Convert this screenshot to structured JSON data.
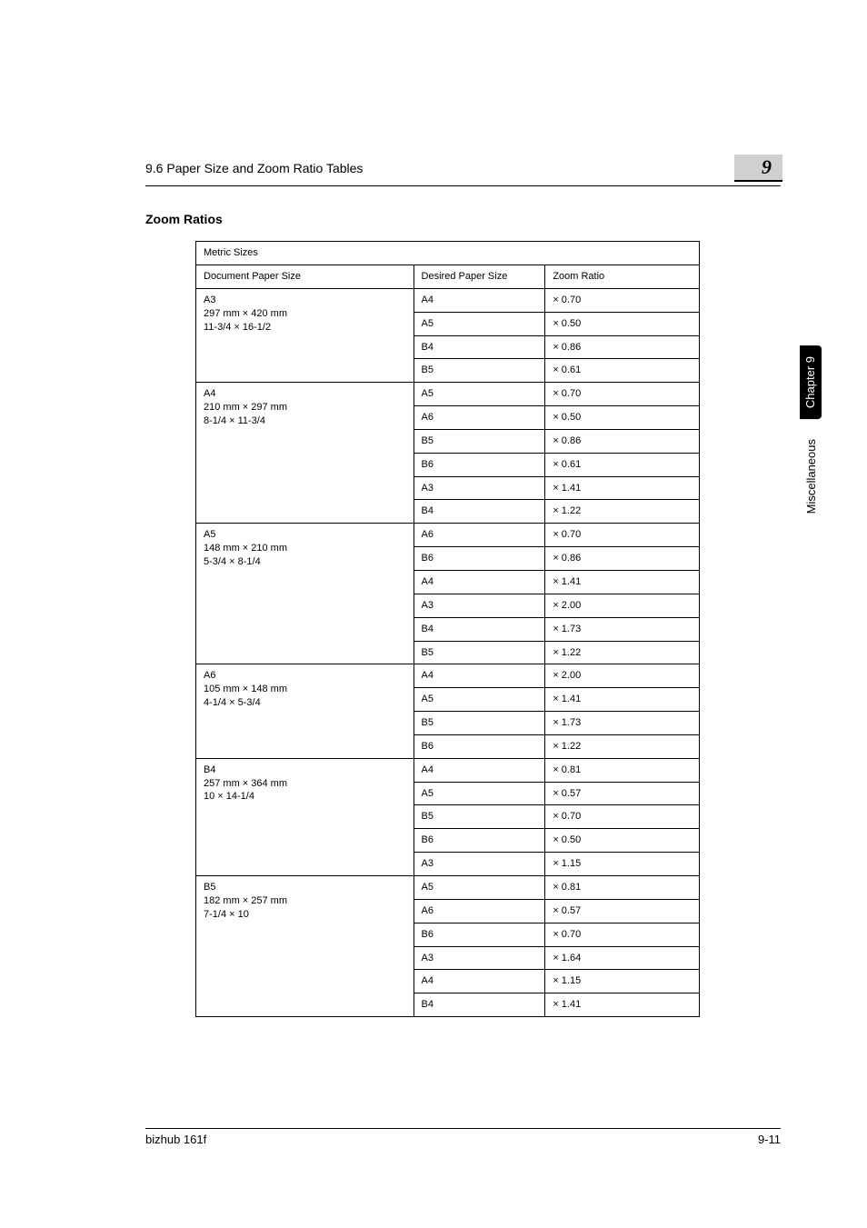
{
  "header": {
    "title": "9.6 Paper Size and Zoom Ratio Tables",
    "chapter_number": "9"
  },
  "section_title": "Zoom Ratios",
  "table": {
    "caption": "Metric Sizes",
    "columns": {
      "doc": "Document Paper Size",
      "desired": "Desired Paper Size",
      "ratio": "Zoom Ratio"
    },
    "groups": [
      {
        "name": "A3",
        "dim_mm": "297 mm × 420 mm",
        "dim_in": "11-3/4 × 16-1/2",
        "rows": [
          {
            "desired": "A4",
            "ratio": "× 0.70"
          },
          {
            "desired": "A5",
            "ratio": "× 0.50"
          },
          {
            "desired": "B4",
            "ratio": "× 0.86"
          },
          {
            "desired": "B5",
            "ratio": "× 0.61"
          }
        ]
      },
      {
        "name": "A4",
        "dim_mm": "210 mm × 297 mm",
        "dim_in": "8-1/4 × 11-3/4",
        "rows": [
          {
            "desired": "A5",
            "ratio": "× 0.70"
          },
          {
            "desired": "A6",
            "ratio": "× 0.50"
          },
          {
            "desired": "B5",
            "ratio": "× 0.86"
          },
          {
            "desired": "B6",
            "ratio": "× 0.61"
          },
          {
            "desired": "A3",
            "ratio": "× 1.41"
          },
          {
            "desired": "B4",
            "ratio": "× 1.22"
          }
        ]
      },
      {
        "name": "A5",
        "dim_mm": "148 mm × 210 mm",
        "dim_in": "5-3/4 × 8-1/4",
        "rows": [
          {
            "desired": "A6",
            "ratio": "× 0.70"
          },
          {
            "desired": "B6",
            "ratio": "× 0.86"
          },
          {
            "desired": "A4",
            "ratio": "× 1.41"
          },
          {
            "desired": "A3",
            "ratio": "× 2.00"
          },
          {
            "desired": "B4",
            "ratio": "× 1.73"
          },
          {
            "desired": "B5",
            "ratio": "× 1.22"
          }
        ]
      },
      {
        "name": "A6",
        "dim_mm": "105 mm × 148 mm",
        "dim_in": "4-1/4 × 5-3/4",
        "rows": [
          {
            "desired": "A4",
            "ratio": "× 2.00"
          },
          {
            "desired": "A5",
            "ratio": "× 1.41"
          },
          {
            "desired": "B5",
            "ratio": "× 1.73"
          },
          {
            "desired": "B6",
            "ratio": "× 1.22"
          }
        ]
      },
      {
        "name": "B4",
        "dim_mm": "257 mm × 364 mm",
        "dim_in": "10 × 14-1/4",
        "rows": [
          {
            "desired": "A4",
            "ratio": "× 0.81"
          },
          {
            "desired": "A5",
            "ratio": "× 0.57"
          },
          {
            "desired": "B5",
            "ratio": "× 0.70"
          },
          {
            "desired": "B6",
            "ratio": "× 0.50"
          },
          {
            "desired": "A3",
            "ratio": "× 1.15"
          }
        ]
      },
      {
        "name": "B5",
        "dim_mm": "182 mm × 257 mm",
        "dim_in": "7-1/4 × 10",
        "rows": [
          {
            "desired": "A5",
            "ratio": "× 0.81"
          },
          {
            "desired": "A6",
            "ratio": "× 0.57"
          },
          {
            "desired": "B6",
            "ratio": "× 0.70"
          },
          {
            "desired": "A3",
            "ratio": "× 1.64"
          },
          {
            "desired": "A4",
            "ratio": "× 1.15"
          },
          {
            "desired": "B4",
            "ratio": "× 1.41"
          }
        ]
      }
    ]
  },
  "side_tabs": {
    "chapter": "Chapter 9",
    "section": "Miscellaneous"
  },
  "footer": {
    "product": "bizhub 161f",
    "page": "9-11"
  }
}
